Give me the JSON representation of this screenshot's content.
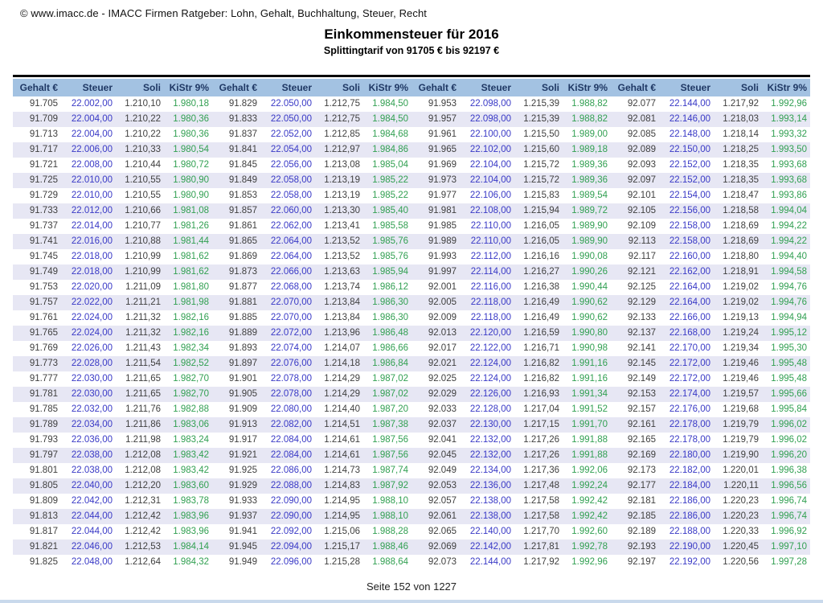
{
  "page": {
    "copyright": "© www.imacc.de - IMACC Firmen Ratgeber: Lohn, Gehalt, Buchhaltung, Steuer, Recht",
    "title": "Einkommensteuer für 2016",
    "subtitle": "Splittingtarif von 91705 € bis 92197 €",
    "footer": "Seite 152 von 1227"
  },
  "colors": {
    "header_bg": "#a3c2e2",
    "header_text": "#1f3864",
    "steuer_text": "#3939c6",
    "kistr_text": "#32a052",
    "body_text": "#3f3f3f",
    "row_alt_bg": "#e7e7f4",
    "top_rule": "#0a0a0a",
    "bottom_rule": "#c9d9ec"
  },
  "table": {
    "column_headers": [
      "Gehalt €",
      "Steuer",
      "Soli",
      "KiStr 9%"
    ],
    "group_count": 4,
    "rows": [
      [
        "91.705",
        "22.002,00",
        "1.210,10",
        "1.980,18",
        "91.829",
        "22.050,00",
        "1.212,75",
        "1.984,50",
        "91.953",
        "22.098,00",
        "1.215,39",
        "1.988,82",
        "92.077",
        "22.144,00",
        "1.217,92",
        "1.992,96"
      ],
      [
        "91.709",
        "22.004,00",
        "1.210,22",
        "1.980,36",
        "91.833",
        "22.050,00",
        "1.212,75",
        "1.984,50",
        "91.957",
        "22.098,00",
        "1.215,39",
        "1.988,82",
        "92.081",
        "22.146,00",
        "1.218,03",
        "1.993,14"
      ],
      [
        "91.713",
        "22.004,00",
        "1.210,22",
        "1.980,36",
        "91.837",
        "22.052,00",
        "1.212,85",
        "1.984,68",
        "91.961",
        "22.100,00",
        "1.215,50",
        "1.989,00",
        "92.085",
        "22.148,00",
        "1.218,14",
        "1.993,32"
      ],
      [
        "91.717",
        "22.006,00",
        "1.210,33",
        "1.980,54",
        "91.841",
        "22.054,00",
        "1.212,97",
        "1.984,86",
        "91.965",
        "22.102,00",
        "1.215,60",
        "1.989,18",
        "92.089",
        "22.150,00",
        "1.218,25",
        "1.993,50"
      ],
      [
        "91.721",
        "22.008,00",
        "1.210,44",
        "1.980,72",
        "91.845",
        "22.056,00",
        "1.213,08",
        "1.985,04",
        "91.969",
        "22.104,00",
        "1.215,72",
        "1.989,36",
        "92.093",
        "22.152,00",
        "1.218,35",
        "1.993,68"
      ],
      [
        "91.725",
        "22.010,00",
        "1.210,55",
        "1.980,90",
        "91.849",
        "22.058,00",
        "1.213,19",
        "1.985,22",
        "91.973",
        "22.104,00",
        "1.215,72",
        "1.989,36",
        "92.097",
        "22.152,00",
        "1.218,35",
        "1.993,68"
      ],
      [
        "91.729",
        "22.010,00",
        "1.210,55",
        "1.980,90",
        "91.853",
        "22.058,00",
        "1.213,19",
        "1.985,22",
        "91.977",
        "22.106,00",
        "1.215,83",
        "1.989,54",
        "92.101",
        "22.154,00",
        "1.218,47",
        "1.993,86"
      ],
      [
        "91.733",
        "22.012,00",
        "1.210,66",
        "1.981,08",
        "91.857",
        "22.060,00",
        "1.213,30",
        "1.985,40",
        "91.981",
        "22.108,00",
        "1.215,94",
        "1.989,72",
        "92.105",
        "22.156,00",
        "1.218,58",
        "1.994,04"
      ],
      [
        "91.737",
        "22.014,00",
        "1.210,77",
        "1.981,26",
        "91.861",
        "22.062,00",
        "1.213,41",
        "1.985,58",
        "91.985",
        "22.110,00",
        "1.216,05",
        "1.989,90",
        "92.109",
        "22.158,00",
        "1.218,69",
        "1.994,22"
      ],
      [
        "91.741",
        "22.016,00",
        "1.210,88",
        "1.981,44",
        "91.865",
        "22.064,00",
        "1.213,52",
        "1.985,76",
        "91.989",
        "22.110,00",
        "1.216,05",
        "1.989,90",
        "92.113",
        "22.158,00",
        "1.218,69",
        "1.994,22"
      ],
      [
        "91.745",
        "22.018,00",
        "1.210,99",
        "1.981,62",
        "91.869",
        "22.064,00",
        "1.213,52",
        "1.985,76",
        "91.993",
        "22.112,00",
        "1.216,16",
        "1.990,08",
        "92.117",
        "22.160,00",
        "1.218,80",
        "1.994,40"
      ],
      [
        "91.749",
        "22.018,00",
        "1.210,99",
        "1.981,62",
        "91.873",
        "22.066,00",
        "1.213,63",
        "1.985,94",
        "91.997",
        "22.114,00",
        "1.216,27",
        "1.990,26",
        "92.121",
        "22.162,00",
        "1.218,91",
        "1.994,58"
      ],
      [
        "91.753",
        "22.020,00",
        "1.211,09",
        "1.981,80",
        "91.877",
        "22.068,00",
        "1.213,74",
        "1.986,12",
        "92.001",
        "22.116,00",
        "1.216,38",
        "1.990,44",
        "92.125",
        "22.164,00",
        "1.219,02",
        "1.994,76"
      ],
      [
        "91.757",
        "22.022,00",
        "1.211,21",
        "1.981,98",
        "91.881",
        "22.070,00",
        "1.213,84",
        "1.986,30",
        "92.005",
        "22.118,00",
        "1.216,49",
        "1.990,62",
        "92.129",
        "22.164,00",
        "1.219,02",
        "1.994,76"
      ],
      [
        "91.761",
        "22.024,00",
        "1.211,32",
        "1.982,16",
        "91.885",
        "22.070,00",
        "1.213,84",
        "1.986,30",
        "92.009",
        "22.118,00",
        "1.216,49",
        "1.990,62",
        "92.133",
        "22.166,00",
        "1.219,13",
        "1.994,94"
      ],
      [
        "91.765",
        "22.024,00",
        "1.211,32",
        "1.982,16",
        "91.889",
        "22.072,00",
        "1.213,96",
        "1.986,48",
        "92.013",
        "22.120,00",
        "1.216,59",
        "1.990,80",
        "92.137",
        "22.168,00",
        "1.219,24",
        "1.995,12"
      ],
      [
        "91.769",
        "22.026,00",
        "1.211,43",
        "1.982,34",
        "91.893",
        "22.074,00",
        "1.214,07",
        "1.986,66",
        "92.017",
        "22.122,00",
        "1.216,71",
        "1.990,98",
        "92.141",
        "22.170,00",
        "1.219,34",
        "1.995,30"
      ],
      [
        "91.773",
        "22.028,00",
        "1.211,54",
        "1.982,52",
        "91.897",
        "22.076,00",
        "1.214,18",
        "1.986,84",
        "92.021",
        "22.124,00",
        "1.216,82",
        "1.991,16",
        "92.145",
        "22.172,00",
        "1.219,46",
        "1.995,48"
      ],
      [
        "91.777",
        "22.030,00",
        "1.211,65",
        "1.982,70",
        "91.901",
        "22.078,00",
        "1.214,29",
        "1.987,02",
        "92.025",
        "22.124,00",
        "1.216,82",
        "1.991,16",
        "92.149",
        "22.172,00",
        "1.219,46",
        "1.995,48"
      ],
      [
        "91.781",
        "22.030,00",
        "1.211,65",
        "1.982,70",
        "91.905",
        "22.078,00",
        "1.214,29",
        "1.987,02",
        "92.029",
        "22.126,00",
        "1.216,93",
        "1.991,34",
        "92.153",
        "22.174,00",
        "1.219,57",
        "1.995,66"
      ],
      [
        "91.785",
        "22.032,00",
        "1.211,76",
        "1.982,88",
        "91.909",
        "22.080,00",
        "1.214,40",
        "1.987,20",
        "92.033",
        "22.128,00",
        "1.217,04",
        "1.991,52",
        "92.157",
        "22.176,00",
        "1.219,68",
        "1.995,84"
      ],
      [
        "91.789",
        "22.034,00",
        "1.211,86",
        "1.983,06",
        "91.913",
        "22.082,00",
        "1.214,51",
        "1.987,38",
        "92.037",
        "22.130,00",
        "1.217,15",
        "1.991,70",
        "92.161",
        "22.178,00",
        "1.219,79",
        "1.996,02"
      ],
      [
        "91.793",
        "22.036,00",
        "1.211,98",
        "1.983,24",
        "91.917",
        "22.084,00",
        "1.214,61",
        "1.987,56",
        "92.041",
        "22.132,00",
        "1.217,26",
        "1.991,88",
        "92.165",
        "22.178,00",
        "1.219,79",
        "1.996,02"
      ],
      [
        "91.797",
        "22.038,00",
        "1.212,08",
        "1.983,42",
        "91.921",
        "22.084,00",
        "1.214,61",
        "1.987,56",
        "92.045",
        "22.132,00",
        "1.217,26",
        "1.991,88",
        "92.169",
        "22.180,00",
        "1.219,90",
        "1.996,20"
      ],
      [
        "91.801",
        "22.038,00",
        "1.212,08",
        "1.983,42",
        "91.925",
        "22.086,00",
        "1.214,73",
        "1.987,74",
        "92.049",
        "22.134,00",
        "1.217,36",
        "1.992,06",
        "92.173",
        "22.182,00",
        "1.220,01",
        "1.996,38"
      ],
      [
        "91.805",
        "22.040,00",
        "1.212,20",
        "1.983,60",
        "91.929",
        "22.088,00",
        "1.214,83",
        "1.987,92",
        "92.053",
        "22.136,00",
        "1.217,48",
        "1.992,24",
        "92.177",
        "22.184,00",
        "1.220,11",
        "1.996,56"
      ],
      [
        "91.809",
        "22.042,00",
        "1.212,31",
        "1.983,78",
        "91.933",
        "22.090,00",
        "1.214,95",
        "1.988,10",
        "92.057",
        "22.138,00",
        "1.217,58",
        "1.992,42",
        "92.181",
        "22.186,00",
        "1.220,23",
        "1.996,74"
      ],
      [
        "91.813",
        "22.044,00",
        "1.212,42",
        "1.983,96",
        "91.937",
        "22.090,00",
        "1.214,95",
        "1.988,10",
        "92.061",
        "22.138,00",
        "1.217,58",
        "1.992,42",
        "92.185",
        "22.186,00",
        "1.220,23",
        "1.996,74"
      ],
      [
        "91.817",
        "22.044,00",
        "1.212,42",
        "1.983,96",
        "91.941",
        "22.092,00",
        "1.215,06",
        "1.988,28",
        "92.065",
        "22.140,00",
        "1.217,70",
        "1.992,60",
        "92.189",
        "22.188,00",
        "1.220,33",
        "1.996,92"
      ],
      [
        "91.821",
        "22.046,00",
        "1.212,53",
        "1.984,14",
        "91.945",
        "22.094,00",
        "1.215,17",
        "1.988,46",
        "92.069",
        "22.142,00",
        "1.217,81",
        "1.992,78",
        "92.193",
        "22.190,00",
        "1.220,45",
        "1.997,10"
      ],
      [
        "91.825",
        "22.048,00",
        "1.212,64",
        "1.984,32",
        "91.949",
        "22.096,00",
        "1.215,28",
        "1.988,64",
        "92.073",
        "22.144,00",
        "1.217,92",
        "1.992,96",
        "92.197",
        "22.192,00",
        "1.220,56",
        "1.997,28"
      ]
    ]
  }
}
